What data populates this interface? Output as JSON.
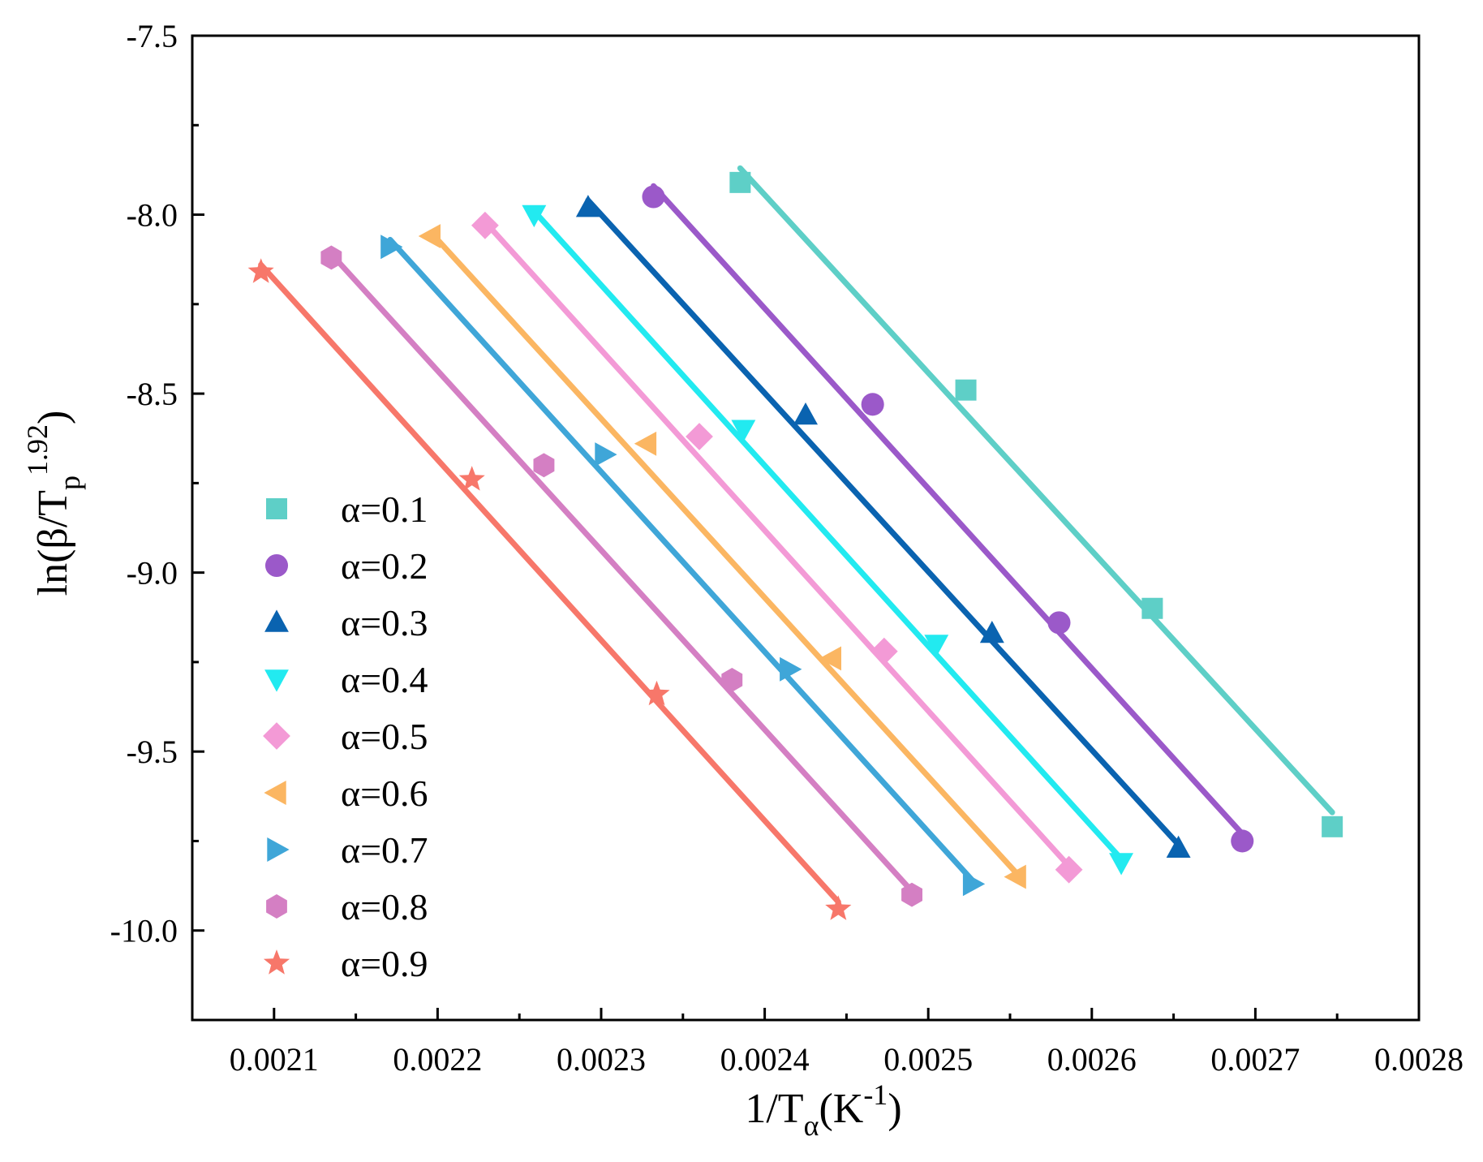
{
  "chart_data": {
    "type": "scatter",
    "title": "",
    "xlabel": {
      "main": "1/T",
      "sub": "α",
      "rest": "(K",
      "sup": "-1",
      "end": ")"
    },
    "ylabel": {
      "main": "ln(β/T",
      "sub": "p",
      "sup": "1.92",
      "end": ")"
    },
    "xlim": [
      0.00205,
      0.0028
    ],
    "ylim": [
      -10.25,
      -7.5
    ],
    "xticks": [
      "0.0021",
      "0.0022",
      "0.0023",
      "0.0024",
      "0.0025",
      "0.0026",
      "0.0027",
      "0.0028"
    ],
    "xtick_values": [
      0.0021,
      0.0022,
      0.0023,
      0.0024,
      0.0025,
      0.0026,
      0.0027,
      0.0028
    ],
    "yticks": [
      "-7.5",
      "-8.0",
      "-8.5",
      "-9.0",
      "-9.5",
      "-10.0"
    ],
    "ytick_values": [
      -7.5,
      -8.0,
      -8.5,
      -9.0,
      -9.5,
      -10.0
    ],
    "legend_position": "left",
    "series": [
      {
        "name": "α=0.1",
        "color": "#5ecfc7",
        "marker": "square",
        "x": [
          0.002385,
          0.002523,
          0.002637,
          0.002747
        ],
        "y": [
          -7.91,
          -8.49,
          -9.1,
          -9.71
        ],
        "fit": [
          [
            0.002385,
            -7.87
          ],
          [
            0.002747,
            -9.67
          ]
        ]
      },
      {
        "name": "α=0.2",
        "color": "#9b59c9",
        "marker": "circle",
        "x": [
          0.002332,
          0.002466,
          0.00258,
          0.002692
        ],
        "y": [
          -7.95,
          -8.53,
          -9.14,
          -9.75
        ],
        "fit": [
          [
            0.002332,
            -7.92
          ],
          [
            0.002692,
            -9.73
          ]
        ]
      },
      {
        "name": "α=0.3",
        "color": "#0a63b0",
        "marker": "triangle-up",
        "x": [
          0.002292,
          0.002425,
          0.002539,
          0.002653
        ],
        "y": [
          -7.98,
          -8.56,
          -9.17,
          -9.77
        ],
        "fit": [
          [
            0.002292,
            -7.96
          ],
          [
            0.002653,
            -9.76
          ]
        ]
      },
      {
        "name": "α=0.4",
        "color": "#22eaf0",
        "marker": "triangle-down",
        "x": [
          0.002259,
          0.002387,
          0.002505,
          0.002618
        ],
        "y": [
          -8.0,
          -8.6,
          -9.2,
          -9.81
        ],
        "fit": [
          [
            0.002259,
            -7.99
          ],
          [
            0.002618,
            -9.8
          ]
        ]
      },
      {
        "name": "α=0.5",
        "color": "#f39ad6",
        "marker": "diamond",
        "x": [
          0.002229,
          0.00236,
          0.002473,
          0.002586
        ],
        "y": [
          -8.03,
          -8.62,
          -9.22,
          -9.83
        ],
        "fit": [
          [
            0.002229,
            -8.02
          ],
          [
            0.002586,
            -9.82
          ]
        ]
      },
      {
        "name": "α=0.6",
        "color": "#fbb662",
        "marker": "triangle-left",
        "x": [
          0.002196,
          0.002328,
          0.002441,
          0.002554
        ],
        "y": [
          -8.06,
          -8.64,
          -9.24,
          -9.85
        ],
        "fit": [
          [
            0.002196,
            -8.05
          ],
          [
            0.002554,
            -9.84
          ]
        ]
      },
      {
        "name": "α=0.7",
        "color": "#3fa6d8",
        "marker": "triangle-right",
        "x": [
          0.002171,
          0.002302,
          0.002415,
          0.002527
        ],
        "y": [
          -8.09,
          -8.67,
          -9.27,
          -9.87
        ],
        "fit": [
          [
            0.002171,
            -8.07
          ],
          [
            0.002527,
            -9.86
          ]
        ]
      },
      {
        "name": "α=0.8",
        "color": "#d47fc3",
        "marker": "hexagon",
        "x": [
          0.002135,
          0.002265,
          0.00238,
          0.00249
        ],
        "y": [
          -8.12,
          -8.7,
          -9.3,
          -9.9
        ],
        "fit": [
          [
            0.002135,
            -8.11
          ],
          [
            0.00249,
            -9.89
          ]
        ]
      },
      {
        "name": "α=0.9",
        "color": "#f7776a",
        "marker": "star",
        "x": [
          0.002092,
          0.002221,
          0.002334,
          0.002445
        ],
        "y": [
          -8.16,
          -8.74,
          -9.34,
          -9.94
        ],
        "fit": [
          [
            0.002092,
            -8.14
          ],
          [
            0.002445,
            -9.92
          ]
        ]
      }
    ]
  }
}
